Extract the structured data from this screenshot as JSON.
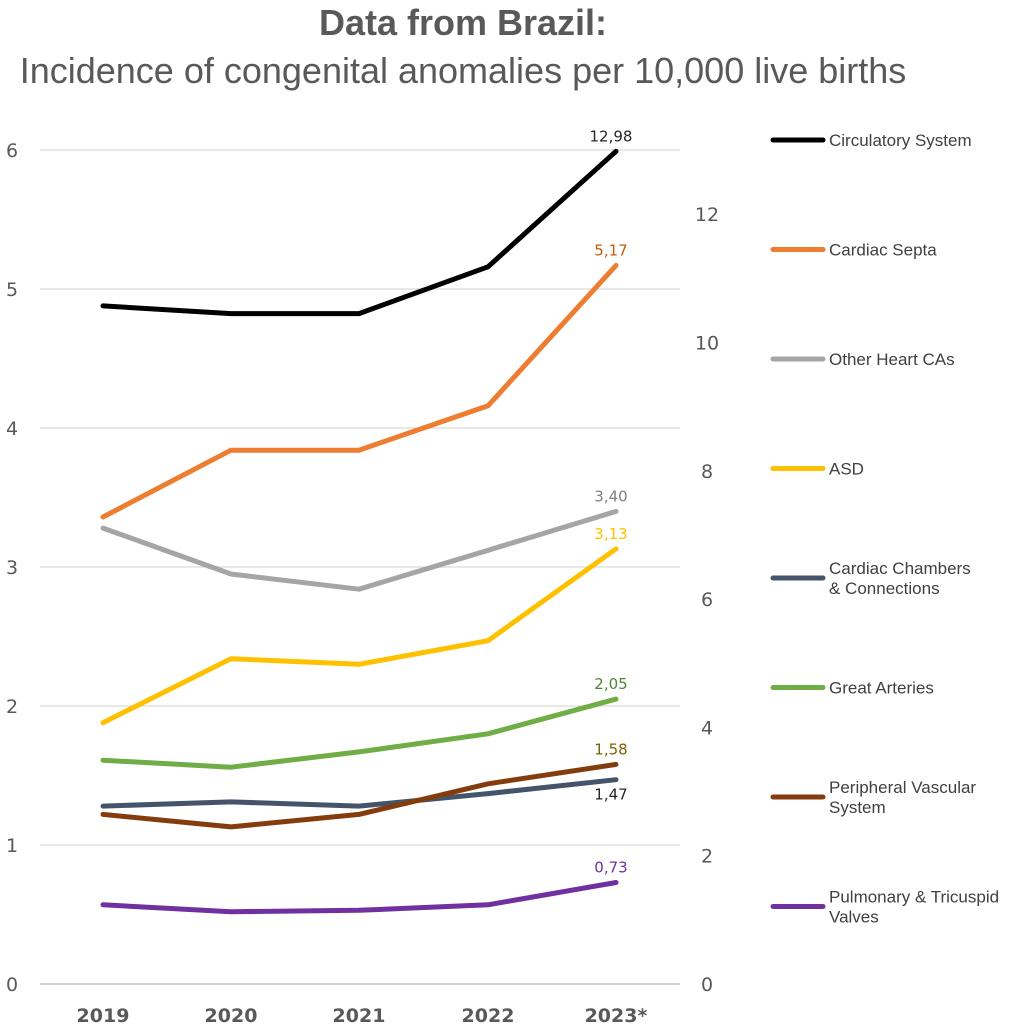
{
  "title_line1": "Data from Brazil:",
  "title_line2": "Incidence of congenital anomalies per 10,000 live births",
  "chart_data": {
    "type": "line",
    "title": "Data from Brazil: Incidence of congenital anomalies per 10,000 live births",
    "categories": [
      "2019",
      "2020",
      "2021",
      "2022",
      "2023*"
    ],
    "y_left": {
      "ticks": [
        "0",
        "1",
        "2",
        "3",
        "4",
        "5",
        "6"
      ],
      "range": [
        0,
        6
      ]
    },
    "y_right": {
      "ticks": [
        "0",
        "2",
        "4",
        "6",
        "8",
        "10",
        "12"
      ],
      "range": [
        0,
        13
      ]
    },
    "grid": true,
    "legend_position": "right",
    "series": [
      {
        "name": "Circulatory System",
        "axis": "right",
        "color": "#000000",
        "values": [
          10.57,
          10.45,
          10.45,
          11.18,
          12.98
        ],
        "end_label": "12,98",
        "label_color": "#262626"
      },
      {
        "name": "Cardiac Septa",
        "axis": "left",
        "color": "#ED7D31",
        "values": [
          3.36,
          3.84,
          3.84,
          4.16,
          5.17
        ],
        "end_label": "5,17",
        "label_color": "#C55A11"
      },
      {
        "name": "Other Heart CAs",
        "axis": "left",
        "color": "#A5A5A5",
        "values": [
          3.28,
          2.95,
          2.84,
          3.12,
          3.4
        ],
        "end_label": "3,40",
        "label_color": "#7F7F7F"
      },
      {
        "name": "ASD",
        "axis": "left",
        "color": "#FFC000",
        "values": [
          1.88,
          2.34,
          2.3,
          2.47,
          3.13
        ],
        "end_label": "3,13",
        "label_color": "#FFC000"
      },
      {
        "name": "Cardiac Chambers & Connections",
        "legend_lines": [
          "Cardiac Chambers",
          " & Connections"
        ],
        "axis": "left",
        "color": "#44546A",
        "values": [
          1.28,
          1.31,
          1.28,
          1.37,
          1.47
        ],
        "end_label": "1,47",
        "label_color": "#262626",
        "label_below": true
      },
      {
        "name": "Great Arteries",
        "axis": "left",
        "color": "#70AD47",
        "values": [
          1.61,
          1.56,
          1.67,
          1.8,
          2.05
        ],
        "end_label": "2,05",
        "label_color": "#548235"
      },
      {
        "name": "Peripheral Vascular System",
        "legend_lines": [
          "Peripheral Vascular",
          "System"
        ],
        "axis": "left",
        "color": "#843C0C",
        "values": [
          1.22,
          1.13,
          1.22,
          1.44,
          1.58
        ],
        "end_label": "1,58",
        "label_color": "#7F6000"
      },
      {
        "name": "Pulmonary & Tricuspid Valves",
        "legend_lines": [
          "Pulmonary & Tricuspid",
          "Valves"
        ],
        "axis": "left",
        "color": "#7030A0",
        "values": [
          0.57,
          0.52,
          0.53,
          0.57,
          0.73
        ],
        "end_label": "0,73",
        "label_color": "#7030A0"
      }
    ]
  }
}
